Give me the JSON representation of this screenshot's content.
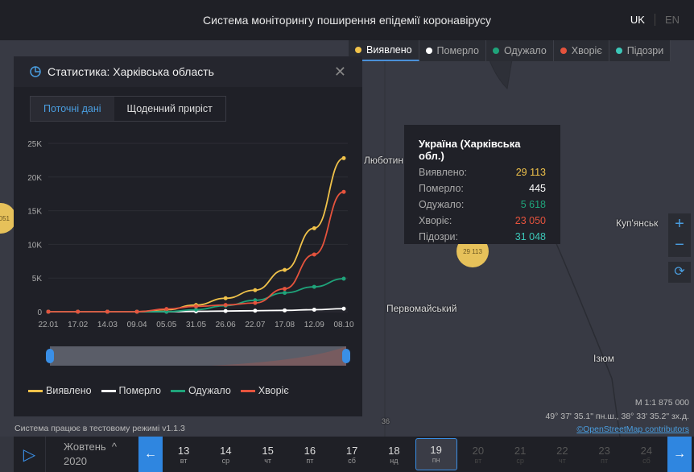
{
  "header": {
    "title": "Система моніторингу поширення епідемії коронавірусу",
    "lang_uk": "UK",
    "lang_en": "EN"
  },
  "legend": [
    {
      "label": "Виявлено",
      "color": "#f0c24a"
    },
    {
      "label": "Померло",
      "color": "#ffffff"
    },
    {
      "label": "Одужало",
      "color": "#1fa37a"
    },
    {
      "label": "Хворіє",
      "color": "#e5533d"
    },
    {
      "label": "Підозри",
      "color": "#3cc7b8"
    }
  ],
  "panel": {
    "title": "Статистика: Харківська область",
    "tab_current": "Поточні дані",
    "tab_daily": "Щоденний приріст"
  },
  "chart_data": {
    "type": "line",
    "x": [
      "22.01",
      "17.02",
      "14.03",
      "09.04",
      "05.05",
      "31.05",
      "26.06",
      "22.07",
      "17.08",
      "12.09",
      "08.10"
    ],
    "yticks": [
      "0",
      "5K",
      "10K",
      "15K",
      "20K",
      "25K"
    ],
    "ylim": [
      0,
      25000
    ],
    "grid": true,
    "legend": "bottom-left",
    "series": [
      {
        "name": "Виявлено",
        "color": "#f0c24a",
        "values": [
          0,
          0,
          0,
          0,
          300,
          1000,
          2000,
          3200,
          6200,
          12400,
          22800
        ]
      },
      {
        "name": "Померло",
        "color": "#ffffff",
        "values": [
          0,
          0,
          0,
          0,
          0,
          50,
          100,
          150,
          200,
          300,
          450
        ]
      },
      {
        "name": "Одужало",
        "color": "#1fa37a",
        "values": [
          0,
          0,
          0,
          0,
          0,
          300,
          900,
          1700,
          2800,
          3700,
          4900
        ]
      },
      {
        "name": "Хворіє",
        "color": "#e5533d",
        "values": [
          0,
          0,
          0,
          0,
          400,
          800,
          1000,
          1300,
          3400,
          8500,
          17800
        ]
      }
    ]
  },
  "tooltip": {
    "title": "Україна (Харківська обл.)",
    "rows": [
      {
        "label": "Виявлено:",
        "value": "29 113",
        "color": "#f0c24a"
      },
      {
        "label": "Померло:",
        "value": "445",
        "color": "#ffffff"
      },
      {
        "label": "Одужало:",
        "value": "5 618",
        "color": "#1fa37a"
      },
      {
        "label": "Хворіє:",
        "value": "23 050",
        "color": "#e5533d"
      },
      {
        "label": "Підозри:",
        "value": "31 048",
        "color": "#3cc7b8"
      }
    ]
  },
  "map": {
    "marker_value": "29 113",
    "marker_left": "051",
    "cities": [
      "Люботин",
      "Первомайський",
      "Куп'янськ",
      "Ізюм"
    ],
    "road": "36",
    "scale": "M 1:1 875 000",
    "coords": "49° 37' 35.1\" пн.ш., 38° 33' 35.2\" зх.д.",
    "attribution": "©OpenStreetMap contributors"
  },
  "status": "Система працює в тестовому режимі v1.1.3",
  "timeline": {
    "month": "Жовтень",
    "year": "2020",
    "days": [
      {
        "n": "13",
        "w": "вт"
      },
      {
        "n": "14",
        "w": "ср"
      },
      {
        "n": "15",
        "w": "чт"
      },
      {
        "n": "16",
        "w": "пт"
      },
      {
        "n": "17",
        "w": "сб"
      },
      {
        "n": "18",
        "w": "нд"
      },
      {
        "n": "19",
        "w": "пн"
      },
      {
        "n": "20",
        "w": "вт"
      },
      {
        "n": "21",
        "w": "ср"
      },
      {
        "n": "22",
        "w": "чт"
      },
      {
        "n": "23",
        "w": "пт"
      },
      {
        "n": "24",
        "w": "сб"
      }
    ],
    "selected": "19"
  }
}
